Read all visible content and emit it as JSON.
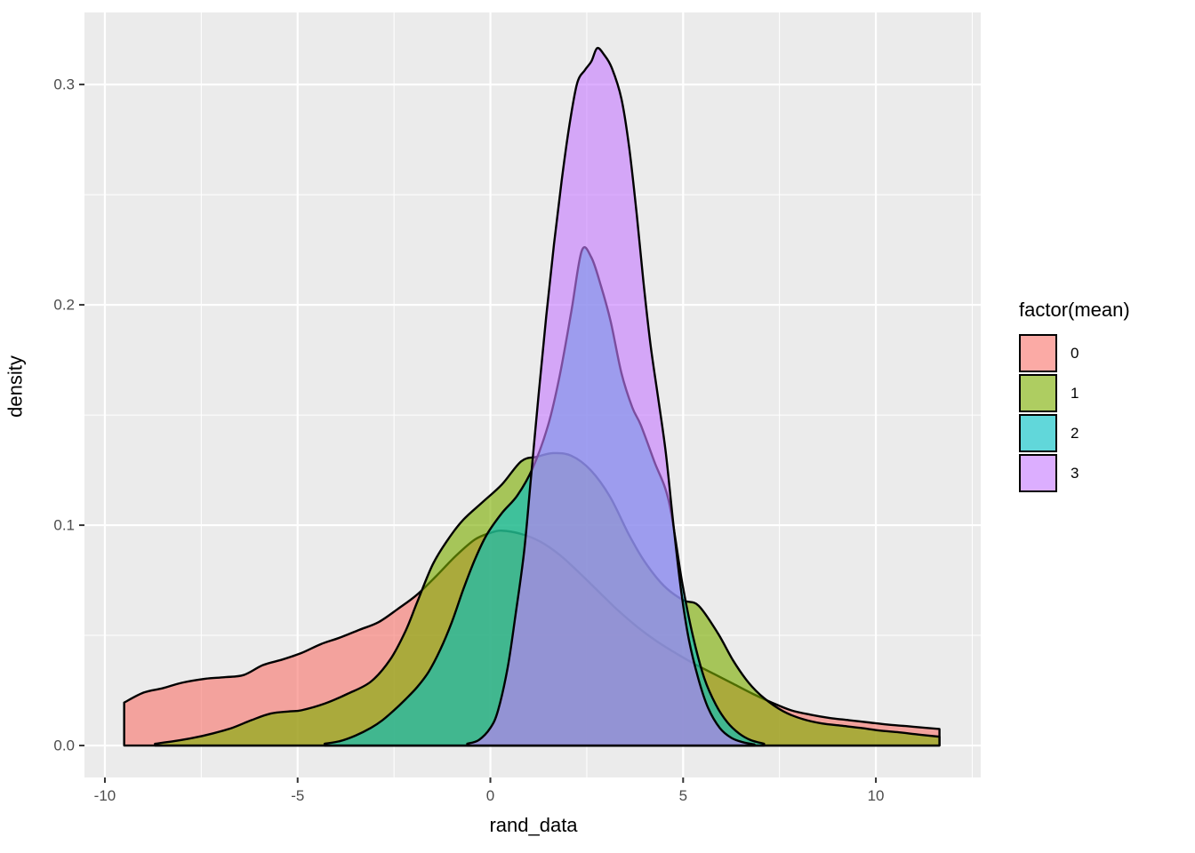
{
  "axes": {
    "x": {
      "label": "rand_data",
      "range": [
        -10.53,
        12.72
      ],
      "major_ticks": [
        -10,
        -5,
        0,
        5,
        10
      ],
      "minor_ticks": [
        -7.5,
        -2.5,
        2.5,
        7.5,
        12.5
      ],
      "tick_labels": [
        "-10",
        "-5",
        "0",
        "5",
        "10"
      ]
    },
    "y": {
      "label": "density",
      "range": [
        -0.0145,
        0.3327
      ],
      "major_ticks": [
        0.0,
        0.1,
        0.2,
        0.3
      ],
      "minor_ticks": [
        0.05,
        0.15,
        0.25
      ],
      "tick_labels": [
        "0.0",
        "0.1",
        "0.2",
        "0.3"
      ]
    }
  },
  "legend": {
    "title": "factor(mean)",
    "items": [
      {
        "label": "0",
        "color": "#F8766D"
      },
      {
        "label": "1",
        "color": "#7CAE00"
      },
      {
        "label": "2",
        "color": "#00BFC4"
      },
      {
        "label": "3",
        "color": "#C77CFF"
      }
    ]
  },
  "style": {
    "panel_bg": "#EBEBEB",
    "grid_color": "#FFFFFF",
    "curve_stroke": "#000000",
    "fill_alpha": 0.62,
    "tick_mark_color": "#333333",
    "axis_text_color": "#4d4d4d"
  },
  "chart_data": {
    "type": "area",
    "title": "",
    "xlabel": "rand_data",
    "ylabel": "density",
    "xlim": [
      -10.53,
      12.72
    ],
    "ylim": [
      -0.0145,
      0.3327
    ],
    "legend_position": "right",
    "grid": true,
    "description": "Overlapping kernel density estimates of rand_data grouped by factor(mean), ggplot2 style, semi-transparent fills with black outlines",
    "series": [
      {
        "name": "0",
        "color": "#F8766D",
        "points": [
          [
            -9.5,
            0.0195
          ],
          [
            -9.0,
            0.024
          ],
          [
            -8.5,
            0.026
          ],
          [
            -8.0,
            0.0285
          ],
          [
            -7.4,
            0.0303
          ],
          [
            -6.9,
            0.031
          ],
          [
            -6.4,
            0.032
          ],
          [
            -5.9,
            0.0365
          ],
          [
            -5.4,
            0.039
          ],
          [
            -4.9,
            0.042
          ],
          [
            -4.4,
            0.046
          ],
          [
            -3.9,
            0.049
          ],
          [
            -3.4,
            0.0525
          ],
          [
            -2.9,
            0.056
          ],
          [
            -2.4,
            0.062
          ],
          [
            -1.9,
            0.0685
          ],
          [
            -1.4,
            0.077
          ],
          [
            -0.9,
            0.086
          ],
          [
            -0.4,
            0.0935
          ],
          [
            0.0,
            0.0965
          ],
          [
            0.3,
            0.0975
          ],
          [
            0.8,
            0.096
          ],
          [
            1.3,
            0.0925
          ],
          [
            1.8,
            0.0865
          ],
          [
            2.3,
            0.0785
          ],
          [
            2.8,
            0.07
          ],
          [
            3.3,
            0.0615
          ],
          [
            3.8,
            0.054
          ],
          [
            4.3,
            0.0475
          ],
          [
            4.8,
            0.042
          ],
          [
            5.3,
            0.037
          ],
          [
            5.8,
            0.0325
          ],
          [
            6.3,
            0.028
          ],
          [
            6.8,
            0.0235
          ],
          [
            7.3,
            0.0195
          ],
          [
            7.8,
            0.016
          ],
          [
            8.3,
            0.014
          ],
          [
            8.8,
            0.0125
          ],
          [
            9.3,
            0.0115
          ],
          [
            9.8,
            0.0105
          ],
          [
            10.3,
            0.0095
          ],
          [
            10.8,
            0.0088
          ],
          [
            11.3,
            0.008
          ],
          [
            11.65,
            0.0075
          ]
        ]
      },
      {
        "name": "1",
        "color": "#7CAE00",
        "points": [
          [
            -8.7,
            0.0008
          ],
          [
            -8.2,
            0.002
          ],
          [
            -7.7,
            0.0035
          ],
          [
            -7.2,
            0.0055
          ],
          [
            -6.7,
            0.008
          ],
          [
            -6.2,
            0.0115
          ],
          [
            -5.7,
            0.0145
          ],
          [
            -5.2,
            0.0155
          ],
          [
            -4.9,
            0.016
          ],
          [
            -4.3,
            0.019
          ],
          [
            -3.7,
            0.0235
          ],
          [
            -3.1,
            0.029
          ],
          [
            -2.6,
            0.039
          ],
          [
            -2.2,
            0.052
          ],
          [
            -1.9,
            0.065
          ],
          [
            -1.5,
            0.082
          ],
          [
            -1.1,
            0.0935
          ],
          [
            -0.7,
            0.1025
          ],
          [
            -0.2,
            0.1105
          ],
          [
            0.3,
            0.1185
          ],
          [
            0.8,
            0.129
          ],
          [
            1.2,
            0.131
          ],
          [
            1.63,
            0.1327
          ],
          [
            2.1,
            0.1315
          ],
          [
            2.6,
            0.125
          ],
          [
            3.1,
            0.113
          ],
          [
            3.6,
            0.0955
          ],
          [
            4.0,
            0.0835
          ],
          [
            4.5,
            0.0725
          ],
          [
            5.0,
            0.066
          ],
          [
            5.4,
            0.0635
          ],
          [
            5.9,
            0.051
          ],
          [
            6.3,
            0.0385
          ],
          [
            6.7,
            0.0285
          ],
          [
            7.1,
            0.0215
          ],
          [
            7.6,
            0.0155
          ],
          [
            8.1,
            0.012
          ],
          [
            8.6,
            0.01
          ],
          [
            9.1,
            0.009
          ],
          [
            9.6,
            0.008
          ],
          [
            10.1,
            0.0068
          ],
          [
            10.6,
            0.006
          ],
          [
            11.1,
            0.005
          ],
          [
            11.65,
            0.004
          ]
        ]
      },
      {
        "name": "2",
        "color": "#00BFC4",
        "points": [
          [
            -4.3,
            0.0008
          ],
          [
            -3.9,
            0.002
          ],
          [
            -3.5,
            0.0045
          ],
          [
            -3.1,
            0.008
          ],
          [
            -2.8,
            0.0115
          ],
          [
            -2.5,
            0.016
          ],
          [
            -2.2,
            0.021
          ],
          [
            -1.9,
            0.0265
          ],
          [
            -1.6,
            0.0335
          ],
          [
            -1.3,
            0.0435
          ],
          [
            -1.0,
            0.056
          ],
          [
            -0.7,
            0.071
          ],
          [
            -0.4,
            0.0845
          ],
          [
            -0.1,
            0.0955
          ],
          [
            0.3,
            0.1055
          ],
          [
            0.7,
            0.1135
          ],
          [
            1.1,
            0.126
          ],
          [
            1.5,
            0.1455
          ],
          [
            1.8,
            0.168
          ],
          [
            2.1,
            0.197
          ],
          [
            2.37,
            0.2245
          ],
          [
            2.62,
            0.2215
          ],
          [
            2.87,
            0.2085
          ],
          [
            3.12,
            0.1925
          ],
          [
            3.4,
            0.169
          ],
          [
            3.68,
            0.1535
          ],
          [
            3.9,
            0.1455
          ],
          [
            4.25,
            0.129
          ],
          [
            4.63,
            0.1108
          ],
          [
            4.97,
            0.0745
          ],
          [
            5.25,
            0.05
          ],
          [
            5.55,
            0.0305
          ],
          [
            5.85,
            0.0185
          ],
          [
            6.15,
            0.0105
          ],
          [
            6.45,
            0.0055
          ],
          [
            6.75,
            0.0025
          ],
          [
            7.1,
            0.0008
          ]
        ]
      },
      {
        "name": "3",
        "color": "#C77CFF",
        "points": [
          [
            -0.6,
            0.0008
          ],
          [
            -0.3,
            0.0025
          ],
          [
            0.0,
            0.008
          ],
          [
            0.2,
            0.016
          ],
          [
            0.45,
            0.0355
          ],
          [
            0.65,
            0.059
          ],
          [
            0.875,
            0.088
          ],
          [
            1.05,
            0.121
          ],
          [
            1.25,
            0.159
          ],
          [
            1.45,
            0.195
          ],
          [
            1.65,
            0.2275
          ],
          [
            1.85,
            0.2565
          ],
          [
            2.05,
            0.2815
          ],
          [
            2.25,
            0.3005
          ],
          [
            2.45,
            0.3065
          ],
          [
            2.62,
            0.3105
          ],
          [
            2.77,
            0.3165
          ],
          [
            2.95,
            0.3135
          ],
          [
            3.15,
            0.3075
          ],
          [
            3.4,
            0.2935
          ],
          [
            3.6,
            0.2715
          ],
          [
            3.8,
            0.2405
          ],
          [
            3.97,
            0.2105
          ],
          [
            4.15,
            0.1825
          ],
          [
            4.35,
            0.158
          ],
          [
            4.55,
            0.133
          ],
          [
            4.75,
            0.1
          ],
          [
            4.95,
            0.07
          ],
          [
            5.15,
            0.048
          ],
          [
            5.4,
            0.03
          ],
          [
            5.65,
            0.017
          ],
          [
            5.95,
            0.008
          ],
          [
            6.25,
            0.0035
          ],
          [
            6.55,
            0.0015
          ],
          [
            6.85,
            0.0005
          ]
        ]
      }
    ]
  }
}
